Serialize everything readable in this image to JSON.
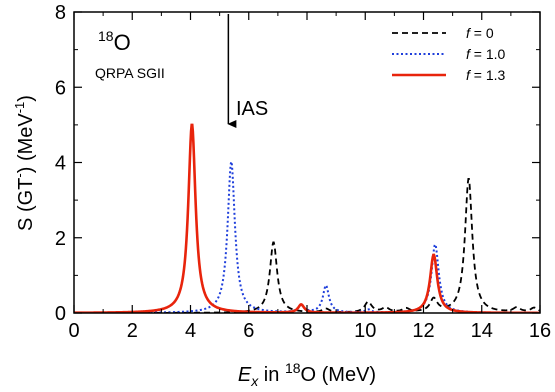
{
  "chart_data": {
    "type": "line",
    "xlabel": {
      "main": "E",
      "sub": "x",
      "mid": " in ",
      "sup": "18",
      "end": "O (MeV)"
    },
    "ylabel": {
      "main": "S (GT",
      "sup": "-",
      "mid": ") (MeV",
      "sup2": "-1",
      "end": ")"
    },
    "xlim": [
      0,
      16
    ],
    "ylim": [
      0,
      8
    ],
    "xticks": [
      "0",
      "2",
      "4",
      "6",
      "8",
      "10",
      "12",
      "14",
      "16"
    ],
    "yticks": [
      "0",
      "2",
      "4",
      "6",
      "8"
    ],
    "grid": false,
    "legend_position": "top-right",
    "annotations": {
      "nucleus_sup": "18",
      "nucleus": "O",
      "model": "QRPA SGII",
      "ias_label": "IAS",
      "ias_x": 5.3
    },
    "series": [
      {
        "name": "f = 0",
        "legend_var": "f",
        "legend_val": " = 0",
        "color": "#000000",
        "style": "dashed",
        "peaks": [
          {
            "e": 6.85,
            "h": 1.88,
            "w": 0.3
          },
          {
            "e": 8.65,
            "h": 0.1,
            "w": 0.3
          },
          {
            "e": 10.1,
            "h": 0.28,
            "w": 0.3
          },
          {
            "e": 10.7,
            "h": 0.12,
            "w": 0.3
          },
          {
            "e": 11.4,
            "h": 0.1,
            "w": 0.3
          },
          {
            "e": 12.35,
            "h": 0.35,
            "w": 0.3
          },
          {
            "e": 13.55,
            "h": 3.57,
            "w": 0.3
          },
          {
            "e": 15.2,
            "h": 0.12,
            "w": 0.3
          },
          {
            "e": 15.8,
            "h": 0.12,
            "w": 0.3
          }
        ]
      },
      {
        "name": "f = 1.0",
        "legend_var": "f",
        "legend_val": " = 1.0",
        "color": "#1f3fdb",
        "style": "dotted",
        "peaks": [
          {
            "e": 5.4,
            "h": 4.02,
            "w": 0.3
          },
          {
            "e": 7.8,
            "h": 0.18,
            "w": 0.25
          },
          {
            "e": 8.65,
            "h": 0.72,
            "w": 0.25
          },
          {
            "e": 10.1,
            "h": 0.08,
            "w": 0.25
          },
          {
            "e": 12.4,
            "h": 1.82,
            "w": 0.3
          }
        ]
      },
      {
        "name": "f = 1.3",
        "legend_var": "f",
        "legend_val": " = 1.3",
        "color": "#e8240c",
        "style": "solid",
        "peaks": [
          {
            "e": 4.05,
            "h": 5.02,
            "w": 0.3
          },
          {
            "e": 7.8,
            "h": 0.22,
            "w": 0.25
          },
          {
            "e": 12.35,
            "h": 1.55,
            "w": 0.3
          }
        ]
      }
    ]
  }
}
